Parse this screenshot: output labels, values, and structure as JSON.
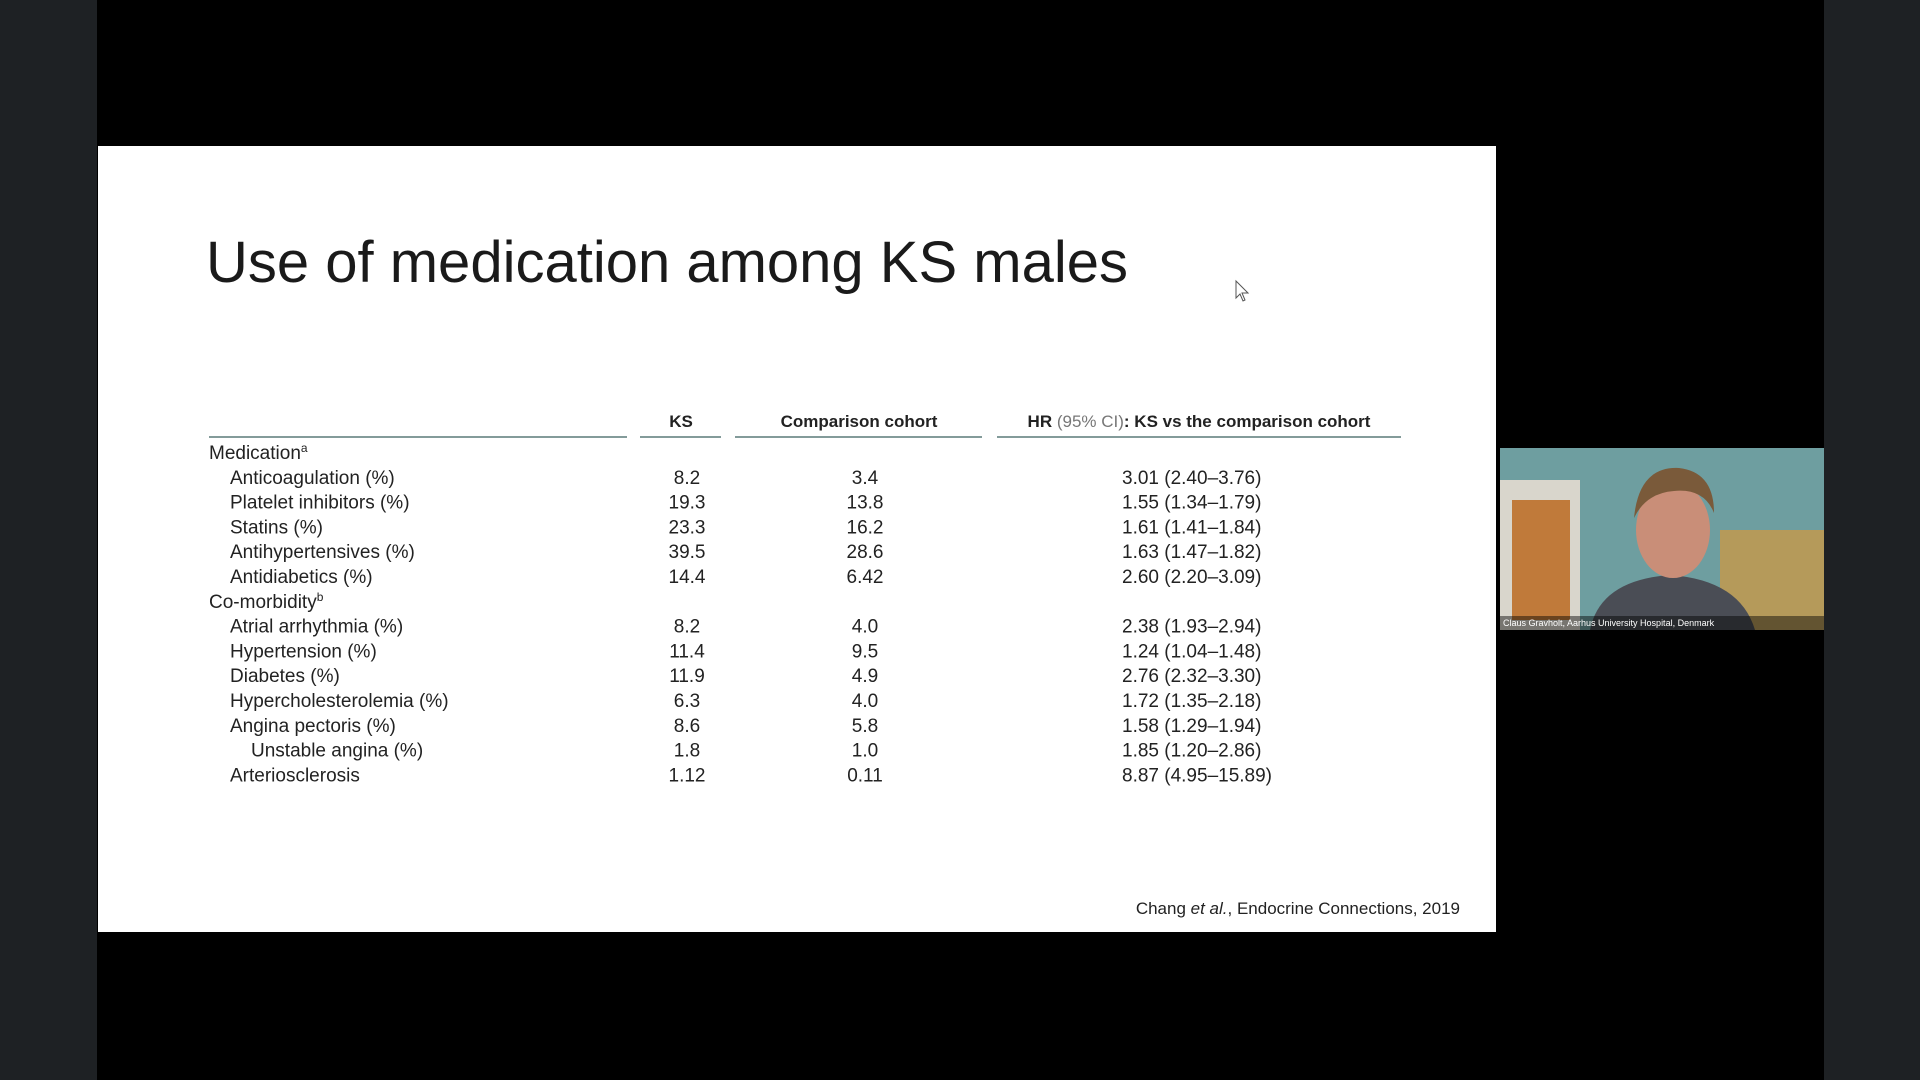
{
  "slide": {
    "title": "Use of medication among KS males",
    "citation": {
      "author": "Chang ",
      "etal": "et al.",
      "source": ", Endocrine Connections, 2019"
    }
  },
  "table": {
    "headers": {
      "ks": "KS",
      "comparison": "Comparison cohort",
      "hr": {
        "bold": "HR",
        "ci": " (95% CI)",
        "rest": ": KS vs the comparison cohort"
      }
    },
    "sections": [
      {
        "label": "Medication",
        "sup": "a",
        "rows": [
          {
            "label": "Anticoagulation (%)",
            "ks": "8.2",
            "comparison": "3.4",
            "hr": "3.01 (2.40–3.76)"
          },
          {
            "label": "Platelet inhibitors (%)",
            "ks": "19.3",
            "comparison": "13.8",
            "hr": "1.55 (1.34–1.79)"
          },
          {
            "label": "Statins (%)",
            "ks": "23.3",
            "comparison": "16.2",
            "hr": "1.61 (1.41–1.84)"
          },
          {
            "label": "Antihypertensives (%)",
            "ks": "39.5",
            "comparison": "28.6",
            "hr": "1.63 (1.47–1.82)"
          },
          {
            "label": "Antidiabetics (%)",
            "ks": "14.4",
            "comparison": "6.42",
            "hr": "2.60 (2.20–3.09)"
          }
        ]
      },
      {
        "label": "Co-morbidity",
        "sup": "b",
        "rows": [
          {
            "label": "Atrial arrhythmia (%)",
            "ks": "8.2",
            "comparison": "4.0",
            "hr": "2.38 (1.93–2.94)"
          },
          {
            "label": "Hypertension (%)",
            "ks": "11.4",
            "comparison": "9.5",
            "hr": "1.24 (1.04–1.48)"
          },
          {
            "label": "Diabetes (%)",
            "ks": "11.9",
            "comparison": "4.9",
            "hr": "2.76 (2.32–3.30)"
          },
          {
            "label": "Hypercholesterolemia (%)",
            "ks": "6.3",
            "comparison": "4.0",
            "hr": "1.72 (1.35–2.18)"
          },
          {
            "label": "Angina pectoris (%)",
            "ks": "8.6",
            "comparison": "5.8",
            "hr": "1.58 (1.29–1.94)",
            "subrows": [
              {
                "label": "Unstable angina (%)",
                "ks": "1.8",
                "comparison": "1.0",
                "hr": "1.85 (1.20–2.86)"
              }
            ]
          },
          {
            "label": "Arteriosclerosis",
            "ks": "1.12",
            "comparison": "0.11",
            "hr": "8.87 (4.95–15.89)"
          }
        ]
      }
    ]
  },
  "webcam": {
    "caption": "Claus Gravholt, Aarhus University Hospital, Denmark"
  }
}
